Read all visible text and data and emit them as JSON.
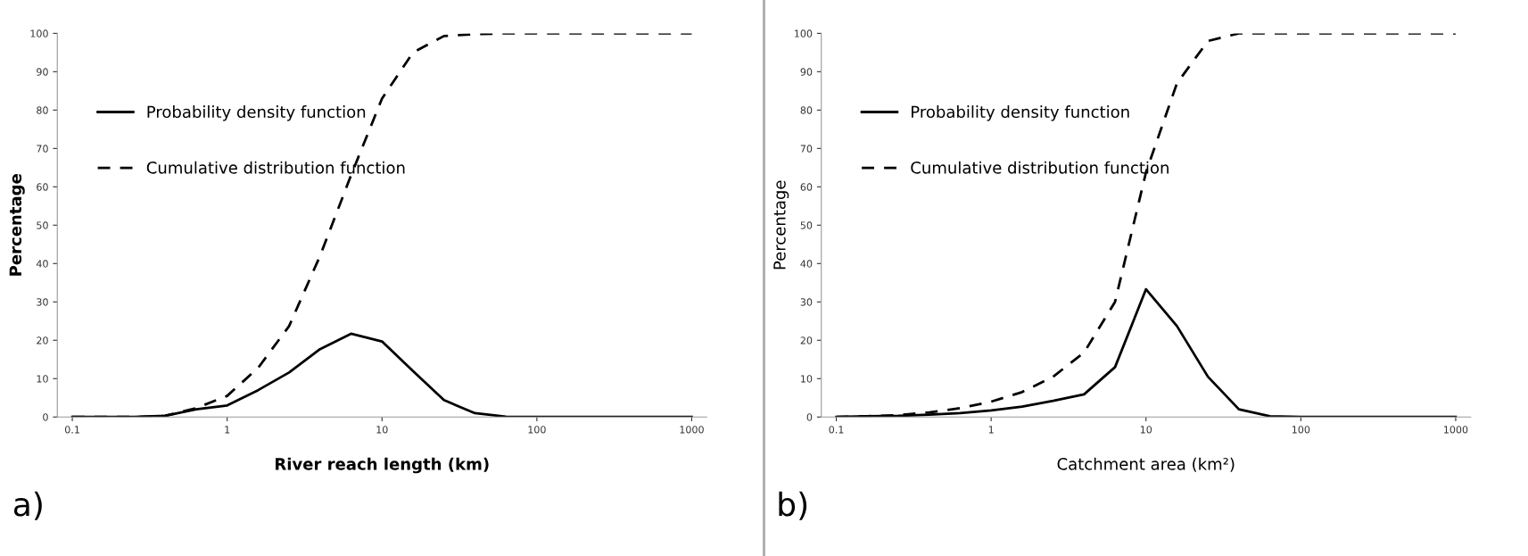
{
  "chart_data": [
    {
      "type": "line",
      "xlabel": "River reach length (km)",
      "ylabel": "Percentage",
      "annotations": [
        "a)"
      ],
      "log": "x",
      "legend": "top left",
      "x": [
        0.1,
        0.158,
        0.251,
        0.398,
        0.631,
        1,
        1.585,
        2.512,
        3.981,
        6.31,
        10,
        15.85,
        25.12,
        39.81,
        63.1,
        100,
        158.5,
        251.2,
        398.1,
        631,
        1000
      ],
      "series": [
        {
          "name": "Probability density function",
          "color": "#000000",
          "line_style": "solid",
          "values": [
            0,
            0,
            0,
            0.3,
            2,
            3,
            7,
            11.6,
            17.7,
            21.7,
            19.7,
            12,
            4.4,
            1,
            0.1,
            0,
            0,
            0,
            0,
            0,
            0
          ]
        },
        {
          "name": "Cumulative distribution function",
          "color": "#000000",
          "line_style": "dashed",
          "values": [
            0,
            0,
            0,
            0.3,
            2.3,
            5.5,
            12.8,
            23.7,
            42,
            63,
            83,
            95,
            99.3,
            99.8,
            100,
            100,
            100,
            100,
            100,
            100,
            100
          ]
        }
      ],
      "xlim": [
        0.08,
        1250
      ],
      "ylim": [
        0,
        100
      ],
      "xticks": [
        0.1,
        1,
        10,
        100,
        1000
      ],
      "yticks": [
        0,
        10,
        20,
        30,
        40,
        50,
        60,
        70,
        80,
        90,
        100
      ]
    },
    {
      "type": "line",
      "xlabel": "Catchment area (km²)",
      "ylabel": "Percentage",
      "annotations": [
        "b)"
      ],
      "log": "x",
      "legend": "top left",
      "x": [
        0.1,
        0.158,
        0.251,
        0.398,
        0.631,
        1,
        1.585,
        2.512,
        3.981,
        6.31,
        10,
        15.85,
        25.12,
        39.81,
        63.1,
        100,
        158.5,
        251.2,
        398.1,
        631,
        1000
      ],
      "series": [
        {
          "name": "Probability density function",
          "color": "#000000",
          "line_style": "solid",
          "values": [
            0,
            0.2,
            0.3,
            0.6,
            1,
            1.7,
            2.7,
            4.2,
            5.9,
            13,
            33.3,
            23.7,
            10.5,
            2,
            0.2,
            0,
            0,
            0,
            0,
            0,
            0
          ]
        },
        {
          "name": "Cumulative distribution function",
          "color": "#000000",
          "line_style": "dashed",
          "values": [
            0,
            0.2,
            0.5,
            1.2,
            2.3,
            4,
            6.5,
            10.5,
            16.8,
            30,
            63.8,
            87,
            98,
            100,
            100,
            100,
            100,
            100,
            100,
            100,
            100
          ]
        }
      ],
      "xlim": [
        0.08,
        1250
      ],
      "ylim": [
        0,
        100
      ],
      "xticks": [
        0.1,
        1,
        10,
        100,
        1000
      ],
      "yticks": [
        0,
        10,
        20,
        30,
        40,
        50,
        60,
        70,
        80,
        90,
        100
      ]
    }
  ]
}
